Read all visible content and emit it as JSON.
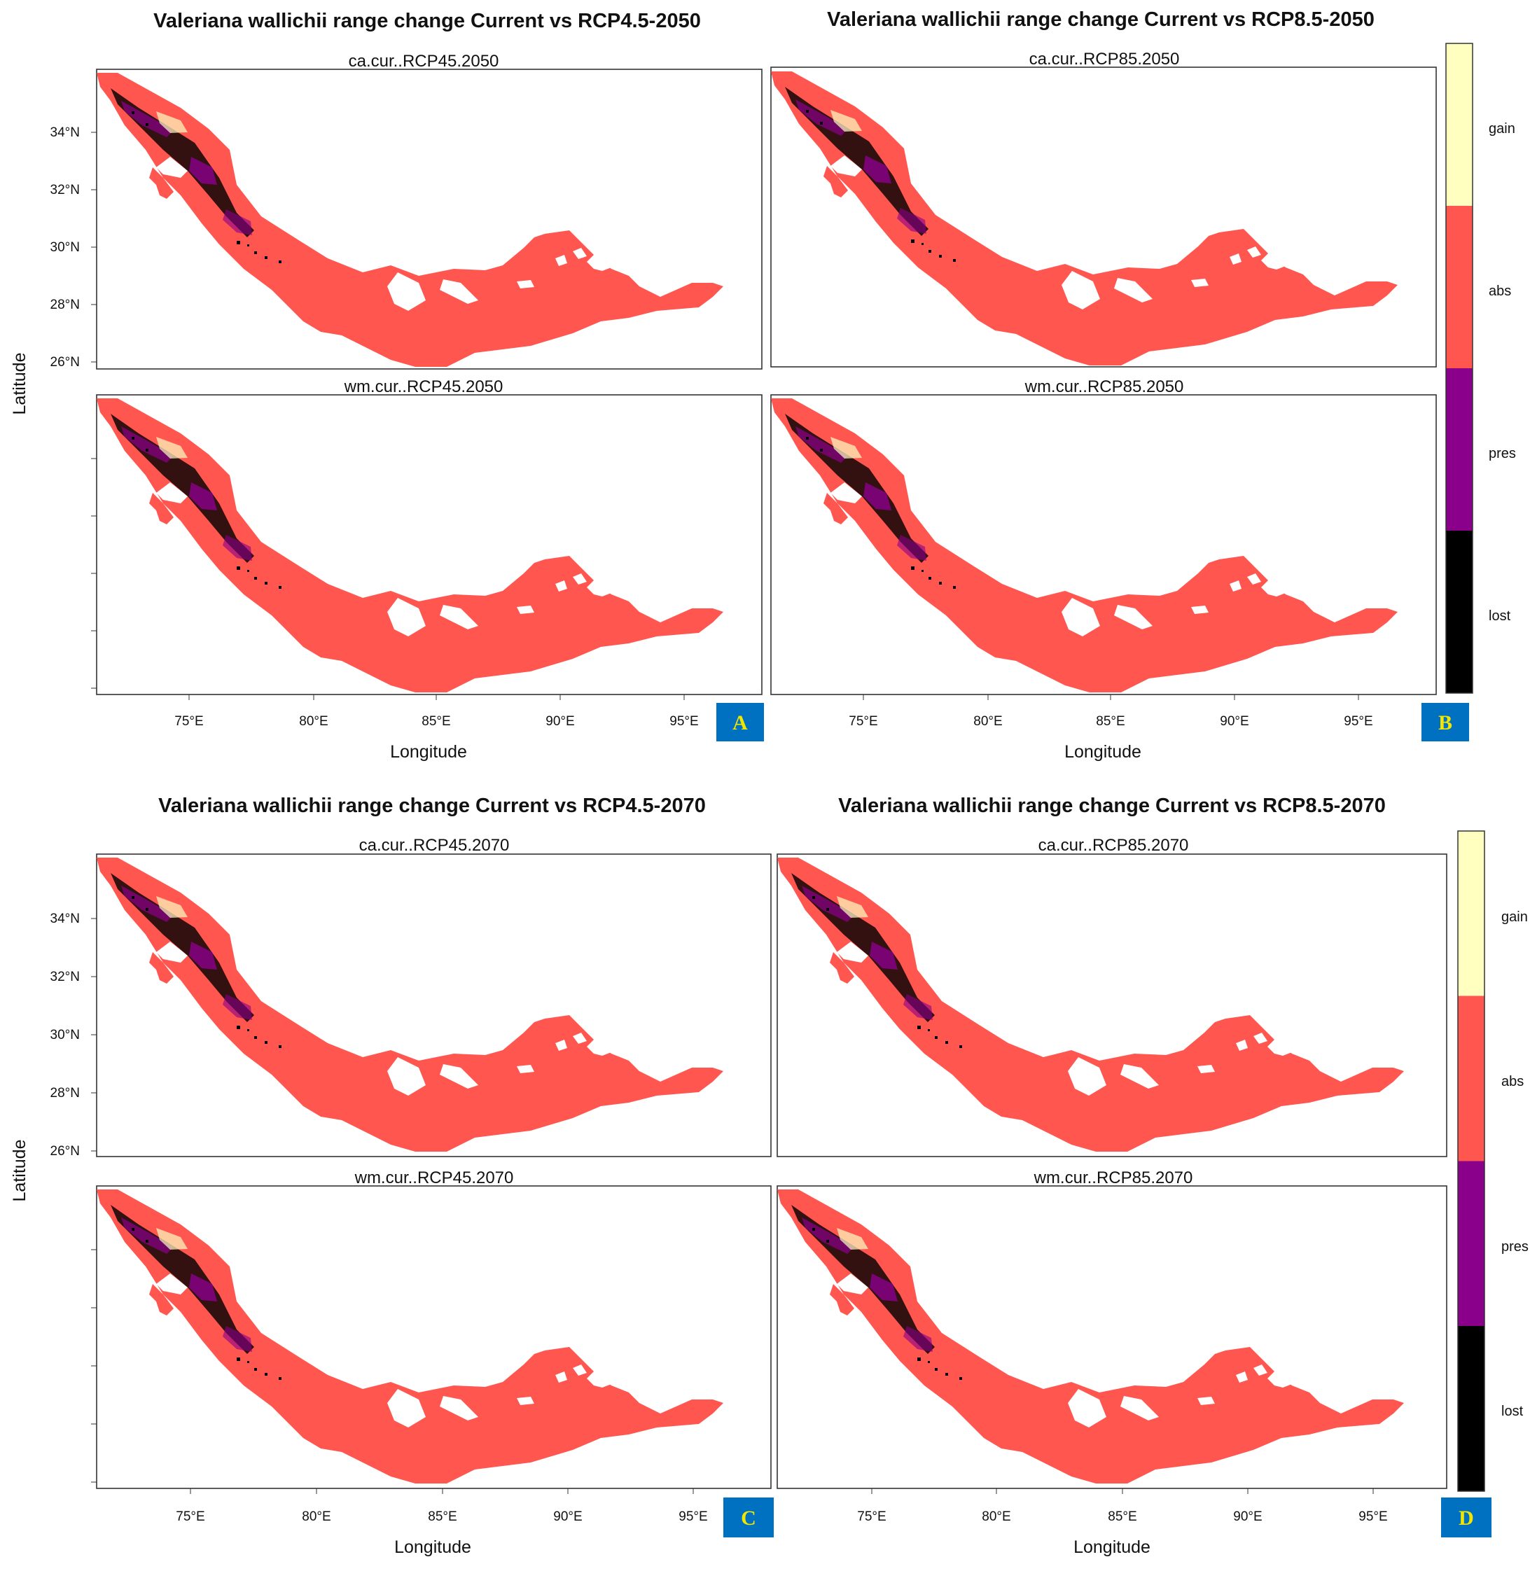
{
  "figure": {
    "species": "Valeriana wallichii",
    "colors": {
      "lost": "#000000",
      "pres": "#8b008b",
      "abs": "#ff5650",
      "gain": "#ffffc0",
      "badge": "#0070c0",
      "badge_text": "#f2e600"
    },
    "x_ticks": [
      "75°E",
      "80°E",
      "85°E",
      "90°E",
      "95°E"
    ],
    "x_tick_values": [
      75,
      80,
      85,
      90,
      95
    ],
    "y_ticks": [
      "26°N",
      "28°N",
      "30°N",
      "32°N",
      "34°N"
    ],
    "y_tick_values": [
      26,
      28,
      30,
      32,
      34
    ],
    "x_axis_label": "Longitude",
    "y_axis_label": "Latitude",
    "legend": {
      "categories": [
        "gain",
        "abs",
        "pres",
        "lost"
      ]
    },
    "groups": [
      {
        "title": "Valeriana wallichii range change Current vs RCP4.5-2050",
        "badge": "A",
        "panels": [
          "ca.cur..RCP45.2050",
          "wm.cur..RCP45.2050"
        ]
      },
      {
        "title": "Valeriana wallichii range change Current vs RCP8.5-2050",
        "badge": "B",
        "panels": [
          "ca.cur..RCP85.2050",
          "wm.cur..RCP85.2050"
        ]
      },
      {
        "title": "Valeriana wallichii range change Current vs RCP4.5-2070",
        "badge": "C",
        "panels": [
          "ca.cur..RCP45.2070",
          "wm.cur..RCP45.2070"
        ]
      },
      {
        "title": "Valeriana wallichii range change Current vs RCP8.5-2070",
        "badge": "D",
        "panels": [
          "ca.cur..RCP85.2070",
          "wm.cur..RCP85.2070"
        ]
      }
    ]
  }
}
